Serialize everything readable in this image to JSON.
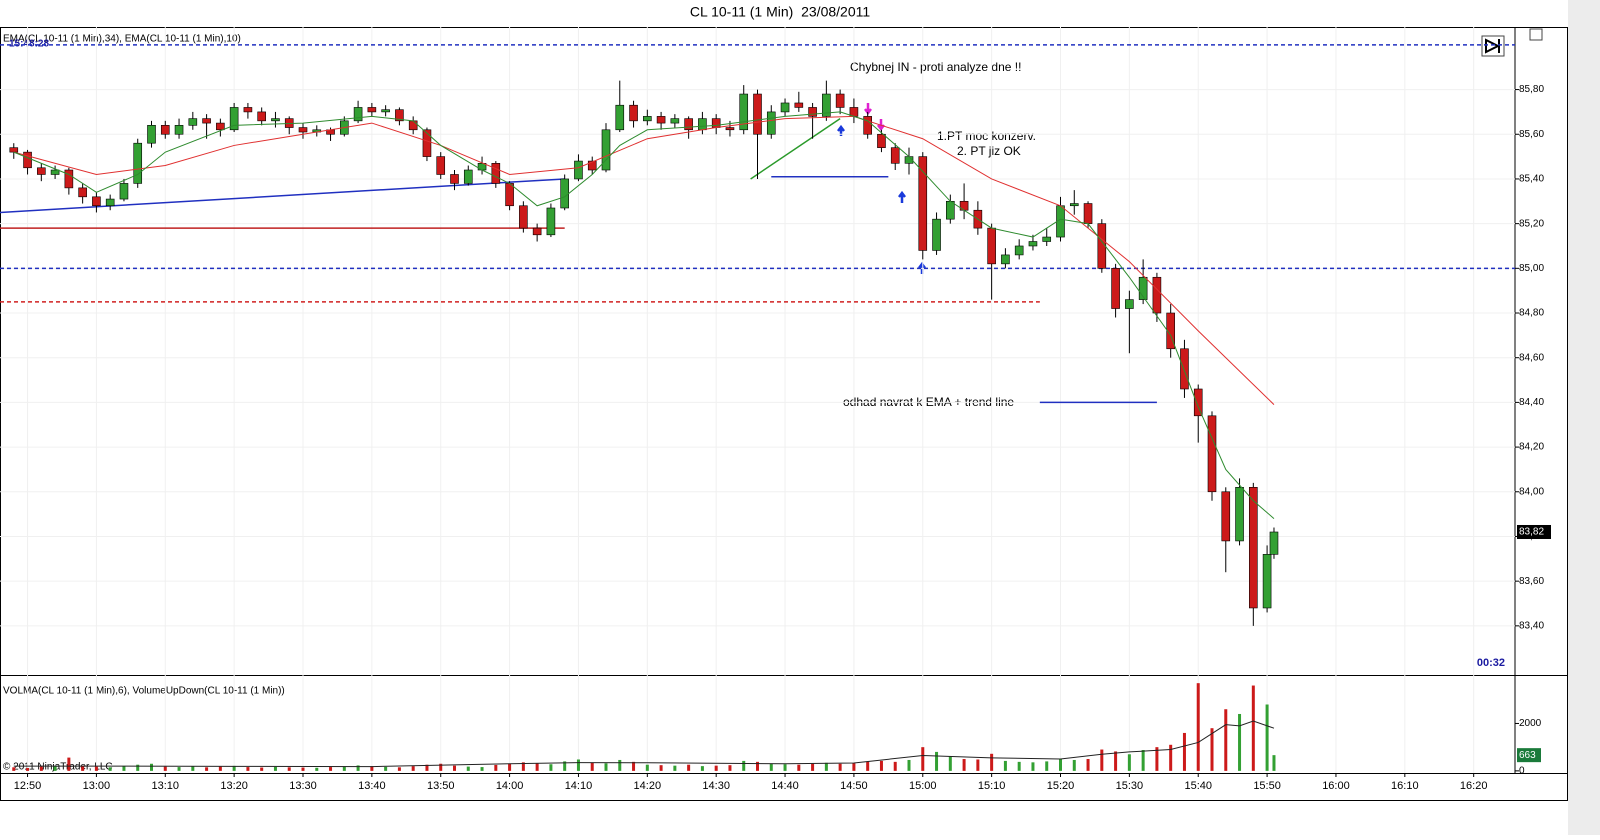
{
  "chart_data": {
    "type": "candlestick",
    "title": "CL 10-11 (1 Min)  23/08/2011",
    "indicator_label": "EMA(CL 10-11 (1 Min),34), EMA(CL 10-11 (1 Min),10)",
    "clock": "15:48:28",
    "bar_timer": "00:32",
    "volume_label": "VOLMA(CL 10-11 (1 Min),6), VolumeUpDown(CL 10-11 (1 Min))",
    "copyright": "© 2011 NinjaTrader, LLC",
    "annotations": [
      "Chybnej IN - proti analyze dne !!",
      "1.PT moc konzerv.",
      "2. PT jiz OK",
      "odhad navrat k EMA + trend line"
    ],
    "xlim": [
      "12:46",
      "16:26"
    ],
    "xticks": [
      "12:50",
      "13:00",
      "13:10",
      "13:20",
      "13:30",
      "13:40",
      "13:50",
      "14:00",
      "14:10",
      "14:20",
      "14:30",
      "14:40",
      "14:50",
      "15:00",
      "15:10",
      "15:20",
      "15:30",
      "15:40",
      "15:50",
      "16:00",
      "16:10",
      "16:20"
    ],
    "ylim": [
      83.18,
      86.08
    ],
    "yticks": [
      {
        "value": 85.8,
        "label": "85,80"
      },
      {
        "value": 85.6,
        "label": "85,60"
      },
      {
        "value": 85.4,
        "label": "85,40"
      },
      {
        "value": 85.2,
        "label": "85,20"
      },
      {
        "value": 85.0,
        "label": "85,00"
      },
      {
        "value": 84.8,
        "label": "84,80"
      },
      {
        "value": 84.6,
        "label": "84,60"
      },
      {
        "value": 84.4,
        "label": "84,40"
      },
      {
        "value": 84.2,
        "label": "84,20"
      },
      {
        "value": 84.0,
        "label": "84,00"
      },
      {
        "value": 83.8,
        "label": "83,80"
      },
      {
        "value": 83.6,
        "label": "83,60"
      },
      {
        "value": 83.4,
        "label": "83,40"
      }
    ],
    "grid": true,
    "up_color": "#33a033",
    "down_color": "#cc1a1a",
    "x": [
      "12:48",
      "12:50",
      "12:52",
      "12:54",
      "12:56",
      "12:58",
      "13:00",
      "13:02",
      "13:04",
      "13:06",
      "13:08",
      "13:10",
      "13:12",
      "13:14",
      "13:16",
      "13:18",
      "13:20",
      "13:22",
      "13:24",
      "13:26",
      "13:28",
      "13:30",
      "13:32",
      "13:34",
      "13:36",
      "13:38",
      "13:40",
      "13:42",
      "13:44",
      "13:46",
      "13:48",
      "13:50",
      "13:52",
      "13:54",
      "13:56",
      "13:58",
      "14:00",
      "14:02",
      "14:04",
      "14:06",
      "14:08",
      "14:10",
      "14:12",
      "14:14",
      "14:16",
      "14:18",
      "14:20",
      "14:22",
      "14:24",
      "14:26",
      "14:28",
      "14:30",
      "14:32",
      "14:34",
      "14:36",
      "14:38",
      "14:40",
      "14:42",
      "14:44",
      "14:46",
      "14:48",
      "14:50",
      "14:52",
      "14:54",
      "14:56",
      "14:58",
      "15:00",
      "15:02",
      "15:04",
      "15:06",
      "15:08",
      "15:10",
      "15:12",
      "15:14",
      "15:16",
      "15:18",
      "15:20",
      "15:22",
      "15:24",
      "15:26",
      "15:28",
      "15:30",
      "15:32",
      "15:34",
      "15:36",
      "15:38",
      "15:40",
      "15:42",
      "15:44",
      "15:46",
      "15:48",
      "15:50",
      "15:51"
    ],
    "open": [
      85.54,
      85.52,
      85.45,
      85.42,
      85.44,
      85.36,
      85.32,
      85.28,
      85.31,
      85.38,
      85.56,
      85.64,
      85.6,
      85.64,
      85.67,
      85.65,
      85.62,
      85.72,
      85.7,
      85.66,
      85.67,
      85.63,
      85.61,
      85.62,
      85.6,
      85.66,
      85.72,
      85.7,
      85.71,
      85.66,
      85.62,
      85.5,
      85.42,
      85.38,
      85.44,
      85.47,
      85.38,
      85.28,
      85.18,
      85.15,
      85.27,
      85.4,
      85.48,
      85.44,
      85.62,
      85.73,
      85.66,
      85.68,
      85.65,
      85.67,
      85.62,
      85.67,
      85.63,
      85.62,
      85.78,
      85.6,
      85.7,
      85.74,
      85.72,
      85.68,
      85.78,
      85.72,
      85.68,
      85.6,
      85.54,
      85.47,
      85.5,
      85.08,
      85.22,
      85.3,
      85.26,
      85.18,
      85.02,
      85.06,
      85.1,
      85.12,
      85.14,
      85.28,
      85.29,
      85.2,
      85.0,
      84.82,
      84.86,
      84.96,
      84.8,
      84.64,
      84.46,
      84.34,
      84.0,
      83.78,
      84.02,
      83.48,
      83.72
    ],
    "high": [
      85.56,
      85.53,
      85.47,
      85.46,
      85.45,
      85.38,
      85.34,
      85.33,
      85.4,
      85.58,
      85.66,
      85.66,
      85.67,
      85.7,
      85.69,
      85.67,
      85.74,
      85.74,
      85.72,
      85.7,
      85.68,
      85.65,
      85.64,
      85.63,
      85.68,
      85.75,
      85.74,
      85.73,
      85.72,
      85.68,
      85.63,
      85.52,
      85.44,
      85.46,
      85.5,
      85.48,
      85.39,
      85.3,
      85.2,
      85.29,
      85.42,
      85.51,
      85.5,
      85.65,
      85.84,
      85.75,
      85.71,
      85.7,
      85.69,
      85.68,
      85.7,
      85.69,
      85.66,
      85.82,
      85.8,
      85.73,
      85.76,
      85.79,
      85.74,
      85.84,
      85.8,
      85.76,
      85.7,
      85.62,
      85.56,
      85.54,
      85.52,
      85.25,
      85.33,
      85.38,
      85.3,
      85.2,
      85.09,
      85.13,
      85.15,
      85.18,
      85.32,
      85.35,
      85.3,
      85.22,
      85.02,
      84.9,
      85.04,
      84.98,
      84.84,
      84.68,
      84.48,
      84.36,
      84.02,
      84.06,
      84.04,
      83.76,
      83.84
    ],
    "low": [
      85.49,
      85.42,
      85.39,
      85.4,
      85.33,
      85.29,
      85.25,
      85.26,
      85.3,
      85.36,
      85.54,
      85.58,
      85.58,
      85.62,
      85.58,
      85.59,
      85.61,
      85.67,
      85.64,
      85.63,
      85.6,
      85.58,
      85.59,
      85.57,
      85.59,
      85.65,
      85.68,
      85.68,
      85.64,
      85.6,
      85.48,
      85.4,
      85.35,
      85.37,
      85.42,
      85.36,
      85.26,
      85.16,
      85.12,
      85.14,
      85.26,
      85.39,
      85.42,
      85.43,
      85.61,
      85.63,
      85.64,
      85.62,
      85.63,
      85.58,
      85.6,
      85.6,
      85.59,
      85.6,
      85.4,
      85.58,
      85.68,
      85.7,
      85.58,
      85.66,
      85.69,
      85.65,
      85.58,
      85.52,
      85.44,
      85.42,
      85.04,
      85.06,
      85.2,
      85.22,
      85.15,
      84.86,
      85.0,
      85.04,
      85.08,
      85.1,
      85.12,
      85.24,
      85.18,
      84.98,
      84.78,
      84.62,
      84.84,
      84.76,
      84.6,
      84.42,
      84.22,
      83.96,
      83.64,
      83.76,
      83.4,
      83.46,
      83.7
    ],
    "close": [
      85.52,
      85.45,
      85.42,
      85.44,
      85.36,
      85.32,
      85.28,
      85.31,
      85.38,
      85.56,
      85.64,
      85.6,
      85.64,
      85.67,
      85.65,
      85.62,
      85.72,
      85.7,
      85.66,
      85.67,
      85.63,
      85.61,
      85.62,
      85.6,
      85.66,
      85.72,
      85.7,
      85.71,
      85.66,
      85.62,
      85.5,
      85.42,
      85.38,
      85.44,
      85.47,
      85.38,
      85.28,
      85.18,
      85.15,
      85.27,
      85.4,
      85.48,
      85.44,
      85.62,
      85.73,
      85.66,
      85.68,
      85.65,
      85.67,
      85.62,
      85.67,
      85.63,
      85.62,
      85.78,
      85.6,
      85.7,
      85.74,
      85.72,
      85.68,
      85.78,
      85.72,
      85.68,
      85.6,
      85.54,
      85.47,
      85.5,
      85.08,
      85.22,
      85.3,
      85.26,
      85.18,
      85.02,
      85.06,
      85.1,
      85.12,
      85.14,
      85.28,
      85.29,
      85.2,
      85.0,
      84.82,
      84.86,
      84.96,
      84.8,
      84.64,
      84.46,
      84.34,
      84.0,
      83.78,
      84.02,
      83.48,
      83.72,
      83.82
    ],
    "last_price": {
      "value": 83.82,
      "label": "83,82"
    },
    "series": [
      {
        "name": "EMA 34",
        "color": "#e03030",
        "x": [
          "12:48",
          "13:00",
          "13:10",
          "13:20",
          "13:30",
          "13:40",
          "13:50",
          "14:00",
          "14:10",
          "14:20",
          "14:30",
          "14:40",
          "14:50",
          "15:00",
          "15:10",
          "15:20",
          "15:30",
          "15:40",
          "15:51"
        ],
        "values": [
          85.52,
          85.42,
          85.46,
          85.55,
          85.6,
          85.65,
          85.55,
          85.42,
          85.45,
          85.58,
          85.63,
          85.67,
          85.68,
          85.58,
          85.4,
          85.28,
          85.03,
          84.72,
          84.39
        ]
      },
      {
        "name": "EMA 10",
        "color": "#2e8b2e",
        "x": [
          "12:48",
          "12:56",
          "13:00",
          "13:06",
          "13:10",
          "13:20",
          "13:30",
          "13:40",
          "13:46",
          "13:50",
          "13:56",
          "14:00",
          "14:04",
          "14:08",
          "14:12",
          "14:16",
          "14:20",
          "14:30",
          "14:40",
          "14:48",
          "14:52",
          "14:58",
          "15:04",
          "15:10",
          "15:16",
          "15:20",
          "15:24",
          "15:30",
          "15:36",
          "15:40",
          "15:44",
          "15:48",
          "15:51"
        ],
        "values": [
          85.52,
          85.42,
          85.34,
          85.42,
          85.52,
          85.64,
          85.65,
          85.68,
          85.66,
          85.55,
          85.44,
          85.38,
          85.28,
          85.32,
          85.42,
          85.55,
          85.62,
          85.64,
          85.68,
          85.7,
          85.66,
          85.5,
          85.3,
          85.18,
          85.14,
          85.22,
          85.2,
          84.96,
          84.7,
          84.38,
          84.1,
          83.96,
          83.88
        ]
      }
    ],
    "drawings": [
      {
        "x": [
          "12:46",
          "16:26"
        ],
        "y": [
          86.0,
          86.0
        ],
        "color": "#2030c0",
        "dash": true
      },
      {
        "x": [
          "12:46",
          "16:26"
        ],
        "y": [
          85.0,
          85.0
        ],
        "color": "#2030c0",
        "dash": true
      },
      {
        "x": [
          "12:46",
          "14:08"
        ],
        "y": [
          85.25,
          85.4
        ],
        "color": "#2030c0",
        "dash": false
      },
      {
        "x": [
          "12:46",
          "14:08"
        ],
        "y": [
          85.18,
          85.18
        ],
        "color": "#c02020",
        "dash": false
      },
      {
        "x": [
          "12:46",
          "15:17"
        ],
        "y": [
          84.85,
          84.85
        ],
        "color": "#d02020",
        "dash": true
      },
      {
        "x": [
          "14:35",
          "14:48"
        ],
        "y": [
          85.4,
          85.67
        ],
        "color": "#2a9a2a",
        "dash": false
      },
      {
        "x": [
          "14:38",
          "14:55"
        ],
        "y": [
          85.41,
          85.41
        ],
        "color": "#2030c0",
        "dash": false
      },
      {
        "x": [
          "15:17",
          "15:34"
        ],
        "y": [
          84.4,
          84.4
        ],
        "color": "#2030c0",
        "dash": false
      }
    ],
    "volume": {
      "ylim": [
        -90,
        3960
      ],
      "yticks": [
        0,
        2000
      ],
      "values": [
        150,
        120,
        180,
        200,
        560,
        220,
        180,
        150,
        200,
        260,
        300,
        180,
        160,
        200,
        150,
        180,
        210,
        160,
        140,
        170,
        150,
        140,
        130,
        160,
        190,
        230,
        200,
        170,
        150,
        200,
        260,
        300,
        220,
        180,
        160,
        250,
        300,
        360,
        320,
        280,
        400,
        480,
        350,
        320,
        460,
        380,
        260,
        240,
        220,
        260,
        200,
        220,
        240,
        420,
        380,
        300,
        280,
        260,
        300,
        340,
        300,
        320,
        380,
        420,
        380,
        460,
        1000,
        800,
        600,
        500,
        480,
        720,
        420,
        380,
        360,
        400,
        520,
        460,
        500,
        900,
        820,
        700,
        880,
        1000,
        1100,
        1600,
        3700,
        1800,
        2600,
        2400,
        3600,
        2800,
        663
      ],
      "last": {
        "value": 663,
        "label": "663"
      },
      "ma": {
        "name": "VOLMA",
        "color": "#222222",
        "x": [
          "12:48",
          "13:00",
          "13:20",
          "13:40",
          "14:00",
          "14:10",
          "14:20",
          "14:40",
          "14:50",
          "15:00",
          "15:10",
          "15:20",
          "15:26",
          "15:30",
          "15:36",
          "15:40",
          "15:44",
          "15:46",
          "15:48",
          "15:51"
        ],
        "values": [
          200,
          200,
          190,
          180,
          300,
          350,
          340,
          300,
          330,
          650,
          550,
          500,
          700,
          800,
          900,
          1200,
          1950,
          1900,
          2100,
          1800
        ]
      }
    }
  }
}
